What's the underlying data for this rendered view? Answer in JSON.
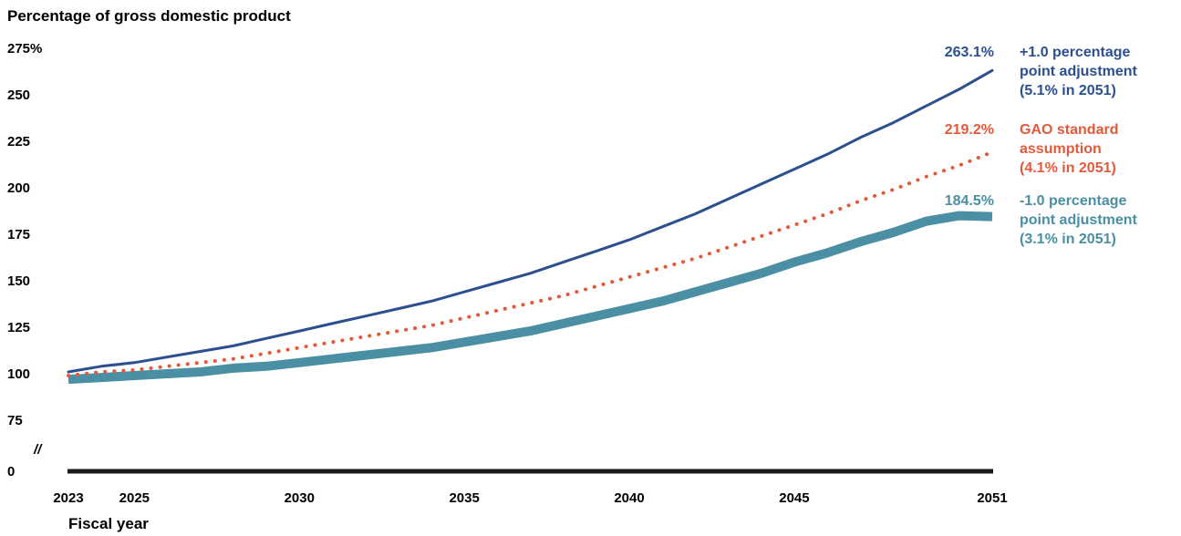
{
  "chart_data": {
    "type": "line",
    "ylabel": "Percentage of gross domestic product",
    "xlabel": "Fiscal year",
    "y_ticks": [
      "275%",
      "250",
      "225",
      "200",
      "175",
      "150",
      "125",
      "100",
      "75",
      "0"
    ],
    "y_tick_values": [
      275,
      250,
      225,
      200,
      175,
      150,
      125,
      100,
      75,
      0
    ],
    "y_break_symbol": "//",
    "x_ticks": [
      "2023",
      "2025",
      "2030",
      "2035",
      "2040",
      "2045",
      "2051"
    ],
    "x_tick_values": [
      2023,
      2025,
      2030,
      2035,
      2040,
      2045,
      2051
    ],
    "xlim": [
      2023,
      2051
    ],
    "ylim": [
      65,
      275
    ],
    "grid": false,
    "colors": {
      "upper": "#2b4f8f",
      "standard": "#e5593b",
      "lower": "#4a8fa3",
      "axis": "#1a1a1a"
    },
    "series": [
      {
        "key": "upper",
        "name": "+1.0 percentage point adjustment (5.1% in 2051)",
        "legend_lines": [
          "+1.0 percentage",
          "point adjustment",
          "(5.1% in 2051)"
        ],
        "end_label": "263.1%",
        "style": "solid-thin",
        "x": [
          2023,
          2024,
          2025,
          2026,
          2027,
          2028,
          2029,
          2030,
          2031,
          2032,
          2033,
          2034,
          2035,
          2036,
          2037,
          2038,
          2039,
          2040,
          2041,
          2042,
          2043,
          2044,
          2045,
          2046,
          2047,
          2048,
          2049,
          2050,
          2051
        ],
        "values": [
          101,
          104,
          106,
          109,
          112,
          115,
          119,
          123,
          127,
          131,
          135,
          139,
          144,
          149,
          154,
          160,
          166,
          172,
          179,
          186,
          194,
          202,
          210,
          218,
          227,
          235,
          244,
          253,
          263.1
        ]
      },
      {
        "key": "standard",
        "name": "GAO standard assumption (4.1% in 2051)",
        "legend_lines": [
          "GAO standard",
          "assumption",
          "(4.1% in 2051)"
        ],
        "end_label": "219.2%",
        "style": "dotted",
        "x": [
          2023,
          2024,
          2025,
          2026,
          2027,
          2028,
          2029,
          2030,
          2031,
          2032,
          2033,
          2034,
          2035,
          2036,
          2037,
          2038,
          2039,
          2040,
          2041,
          2042,
          2043,
          2044,
          2045,
          2046,
          2047,
          2048,
          2049,
          2050,
          2051
        ],
        "values": [
          99,
          101,
          102,
          104,
          106,
          108,
          111,
          114,
          117,
          120,
          123,
          126,
          130,
          134,
          138,
          142,
          147,
          152,
          157,
          162,
          168,
          174,
          180,
          186,
          193,
          199,
          206,
          212,
          219.2
        ]
      },
      {
        "key": "lower",
        "name": "-1.0 percentage point adjustment (3.1% in 2051)",
        "legend_lines": [
          "-1.0 percentage",
          "point adjustment",
          "(3.1% in 2051)"
        ],
        "end_label": "184.5%",
        "style": "solid-thick",
        "x": [
          2023,
          2024,
          2025,
          2026,
          2027,
          2028,
          2029,
          2030,
          2031,
          2032,
          2033,
          2034,
          2035,
          2036,
          2037,
          2038,
          2039,
          2040,
          2041,
          2042,
          2043,
          2044,
          2045,
          2046,
          2047,
          2048,
          2049,
          2050,
          2051
        ],
        "values": [
          97,
          98,
          99,
          100,
          101,
          103,
          104,
          106,
          108,
          110,
          112,
          114,
          117,
          120,
          123,
          127,
          131,
          135,
          139,
          144,
          149,
          154,
          160,
          165,
          171,
          176,
          182,
          185,
          184.5
        ]
      }
    ]
  }
}
